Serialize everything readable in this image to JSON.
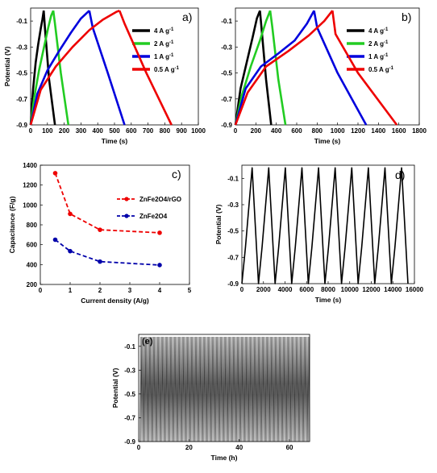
{
  "chart_data": [
    {
      "id": "a",
      "type": "line",
      "panel_label": "a)",
      "xlabel": "Time (s)",
      "ylabel": "Potential (V)",
      "xlim": [
        0,
        1000
      ],
      "ylim": [
        -0.9,
        0
      ],
      "xticks": [
        0,
        100,
        200,
        300,
        400,
        500,
        600,
        700,
        800,
        900,
        1000
      ],
      "yticks": [
        -0.1,
        -0.3,
        -0.5,
        -0.7,
        -0.9
      ],
      "legend_position": "top-right",
      "series": [
        {
          "name": "4 A g",
          "superscript": "-1",
          "color": "#000000",
          "charge": [
            [
              0,
              -0.9
            ],
            [
              15,
              -0.62
            ],
            [
              30,
              -0.42
            ],
            [
              45,
              -0.28
            ],
            [
              60,
              -0.16
            ],
            [
              70,
              -0.09
            ],
            [
              78,
              -0.02
            ]
          ],
          "discharge": [
            [
              78,
              -0.02
            ],
            [
              85,
              -0.15
            ],
            [
              110,
              -0.55
            ],
            [
              145,
              -0.9
            ]
          ]
        },
        {
          "name": "2 A g",
          "superscript": "-1",
          "color": "#22cc22",
          "charge": [
            [
              0,
              -0.9
            ],
            [
              20,
              -0.7
            ],
            [
              50,
              -0.48
            ],
            [
              80,
              -0.3
            ],
            [
              105,
              -0.15
            ],
            [
              122,
              -0.06
            ],
            [
              135,
              -0.02
            ]
          ],
          "discharge": [
            [
              135,
              -0.02
            ],
            [
              145,
              -0.12
            ],
            [
              180,
              -0.5
            ],
            [
              225,
              -0.9
            ]
          ]
        },
        {
          "name": "1 A g",
          "superscript": "-1",
          "color": "#0000dd",
          "charge": [
            [
              0,
              -0.9
            ],
            [
              40,
              -0.66
            ],
            [
              100,
              -0.48
            ],
            [
              170,
              -0.33
            ],
            [
              240,
              -0.19
            ],
            [
              300,
              -0.08
            ],
            [
              350,
              -0.02
            ]
          ],
          "discharge": [
            [
              350,
              -0.02
            ],
            [
              370,
              -0.15
            ],
            [
              460,
              -0.5
            ],
            [
              560,
              -0.9
            ]
          ]
        },
        {
          "name": "0.5 A g",
          "superscript": "-1",
          "color": "#ee0000",
          "charge": [
            [
              0,
              -0.9
            ],
            [
              60,
              -0.63
            ],
            [
              150,
              -0.45
            ],
            [
              250,
              -0.3
            ],
            [
              350,
              -0.17
            ],
            [
              430,
              -0.09
            ],
            [
              510,
              -0.03
            ],
            [
              530,
              -0.02
            ]
          ],
          "discharge": [
            [
              530,
              -0.02
            ],
            [
              560,
              -0.12
            ],
            [
              690,
              -0.5
            ],
            [
              840,
              -0.9
            ]
          ]
        }
      ]
    },
    {
      "id": "b",
      "type": "line",
      "panel_label": "b)",
      "xlabel": "Time (s)",
      "ylabel": "",
      "xlim": [
        0,
        1800
      ],
      "ylim": [
        -0.9,
        0
      ],
      "xticks": [
        0,
        200,
        400,
        600,
        800,
        1000,
        1200,
        1400,
        1600,
        1800
      ],
      "yticks": [
        -0.1,
        -0.3,
        -0.5,
        -0.7,
        -0.9
      ],
      "legend_position": "top-right",
      "series": [
        {
          "name": "4 A g",
          "superscript": "-1",
          "color": "#000000",
          "charge": [
            [
              0,
              -0.9
            ],
            [
              50,
              -0.62
            ],
            [
              110,
              -0.42
            ],
            [
              170,
              -0.22
            ],
            [
              210,
              -0.08
            ],
            [
              240,
              -0.02
            ]
          ],
          "discharge": [
            [
              240,
              -0.02
            ],
            [
              255,
              -0.15
            ],
            [
              300,
              -0.55
            ],
            [
              350,
              -0.9
            ]
          ]
        },
        {
          "name": "2 A g",
          "superscript": "-1",
          "color": "#22cc22",
          "charge": [
            [
              0,
              -0.9
            ],
            [
              60,
              -0.68
            ],
            [
              150,
              -0.45
            ],
            [
              240,
              -0.25
            ],
            [
              300,
              -0.1
            ],
            [
              340,
              -0.02
            ]
          ],
          "discharge": [
            [
              340,
              -0.02
            ],
            [
              360,
              -0.14
            ],
            [
              420,
              -0.55
            ],
            [
              490,
              -0.9
            ]
          ]
        },
        {
          "name": "1 A g",
          "superscript": "-1",
          "color": "#0000dd",
          "charge": [
            [
              0,
              -0.9
            ],
            [
              100,
              -0.62
            ],
            [
              250,
              -0.45
            ],
            [
              420,
              -0.35
            ],
            [
              580,
              -0.25
            ],
            [
              700,
              -0.12
            ],
            [
              770,
              -0.02
            ]
          ],
          "discharge": [
            [
              770,
              -0.02
            ],
            [
              800,
              -0.15
            ],
            [
              1000,
              -0.5
            ],
            [
              1280,
              -0.9
            ]
          ]
        },
        {
          "name": "0.5 A g",
          "superscript": "-1",
          "color": "#ee0000",
          "charge": [
            [
              0,
              -0.9
            ],
            [
              120,
              -0.65
            ],
            [
              300,
              -0.45
            ],
            [
              520,
              -0.33
            ],
            [
              720,
              -0.21
            ],
            [
              870,
              -0.1
            ],
            [
              950,
              -0.02
            ]
          ],
          "discharge": [
            [
              950,
              -0.02
            ],
            [
              980,
              -0.2
            ],
            [
              1200,
              -0.5
            ],
            [
              1580,
              -0.9
            ]
          ]
        }
      ]
    },
    {
      "id": "c",
      "type": "line",
      "panel_label": "c)",
      "xlabel": "Current density (A/g)",
      "ylabel": "Capacitance (F/g)",
      "xlim": [
        0,
        5
      ],
      "ylim": [
        200,
        1400
      ],
      "xticks": [
        0,
        1,
        2,
        3,
        4,
        5
      ],
      "yticks": [
        200,
        400,
        600,
        800,
        1000,
        1200,
        1400
      ],
      "legend_position": "right",
      "series": [
        {
          "name": "ZnFe2O4/rGO",
          "color": "#ee0000",
          "dashed": true,
          "points": [
            [
              0.5,
              1320
            ],
            [
              1,
              910
            ],
            [
              2,
              750
            ],
            [
              4,
              720
            ]
          ]
        },
        {
          "name": "ZnFe2O4",
          "color": "#0000aa",
          "dashed": true,
          "points": [
            [
              0.5,
              650
            ],
            [
              1,
              535
            ],
            [
              2,
              430
            ],
            [
              4,
              395
            ]
          ]
        }
      ]
    },
    {
      "id": "d",
      "type": "line",
      "panel_label": "d)",
      "xlabel": "Time (s)",
      "ylabel": "Potential (V)",
      "xlim": [
        0,
        16000
      ],
      "ylim": [
        -0.9,
        0
      ],
      "xticks": [
        0,
        2000,
        4000,
        6000,
        8000,
        10000,
        12000,
        14000,
        16000
      ],
      "yticks": [
        -0.1,
        -0.3,
        -0.5,
        -0.7,
        -0.9
      ],
      "cycles": 10,
      "charge_time": 950,
      "discharge_time": 590,
      "vmin": -0.9,
      "vmax": -0.02,
      "series_color": "#000000"
    },
    {
      "id": "e",
      "type": "line",
      "panel_label": "(e)",
      "xlabel": "Time (h)",
      "ylabel": "Potential (V)",
      "xlim": [
        0,
        68
      ],
      "ylim": [
        -0.9,
        0
      ],
      "xticks": [
        0,
        20,
        40,
        60
      ],
      "yticks": [
        -0.1,
        -0.3,
        -0.5,
        -0.7,
        -0.9
      ],
      "vmin": -0.9,
      "vmax": -0.02,
      "dense_cycles": 170,
      "series_color": "#000000"
    }
  ]
}
